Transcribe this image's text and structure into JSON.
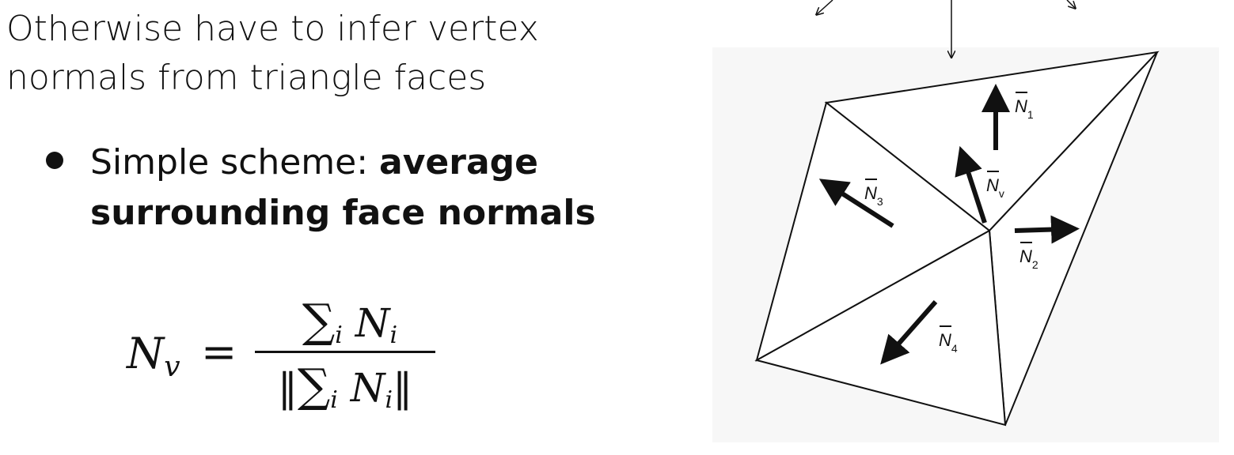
{
  "heading": {
    "line1": "Otherwise have to infer vertex",
    "line2": "normals from triangle faces"
  },
  "bullet": {
    "prefix": "Simple scheme: ",
    "bold_line1": "average",
    "bold_line2": "surrounding face normals"
  },
  "formula": {
    "lhs": "N",
    "lhs_sub": "v",
    "equals": "=",
    "num_sum": "∑",
    "num_index": "i",
    "num_term": "N",
    "num_term_sub": "i",
    "den_open": "‖",
    "den_sum": "∑",
    "den_index": "i",
    "den_term": "N",
    "den_term_sub": "i",
    "den_close": "‖"
  },
  "figure": {
    "labels": {
      "n1": "N",
      "n1_sub": "1",
      "n2": "N",
      "n2_sub": "2",
      "n3": "N",
      "n3_sub": "3",
      "n4": "N",
      "n4_sub": "4",
      "nv": "N",
      "nv_sub": "v"
    }
  }
}
